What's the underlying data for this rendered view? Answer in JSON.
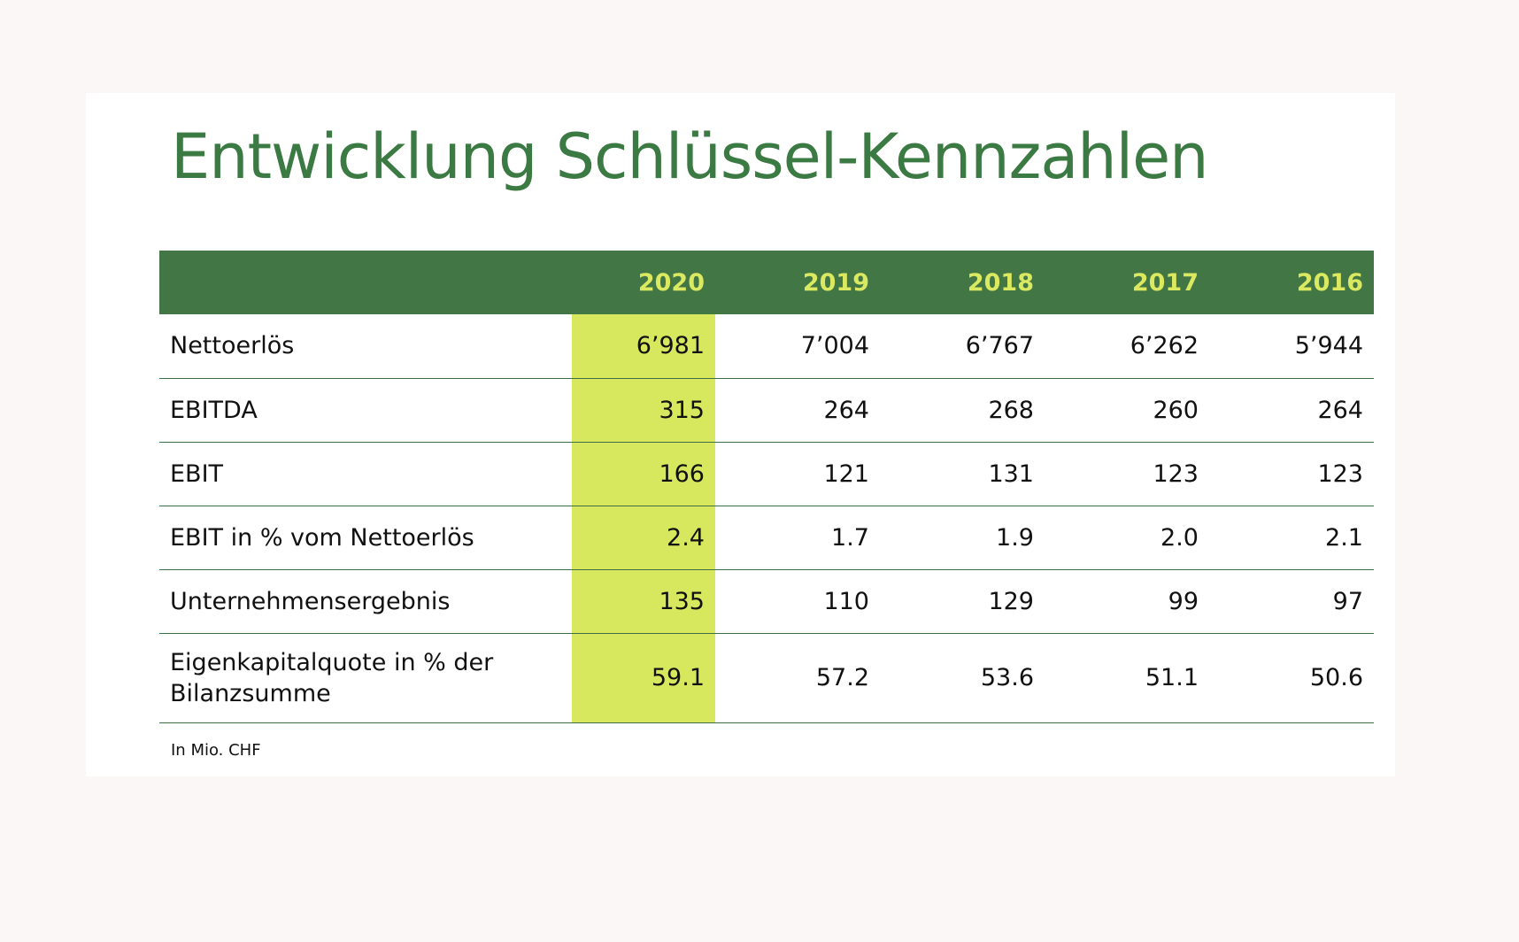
{
  "title": "Entwicklung Schlüssel-Kennzahlen",
  "table": {
    "columns": [
      "",
      "2020",
      "2019",
      "2018",
      "2017",
      "2016"
    ],
    "highlight_column": "2020",
    "rows": [
      {
        "label": "Nettoerlös",
        "values": [
          "6’981",
          "7’004",
          "6’767",
          "6’262",
          "5’944"
        ]
      },
      {
        "label": "EBITDA",
        "values": [
          "315",
          "264",
          "268",
          "260",
          "264"
        ]
      },
      {
        "label": "EBIT",
        "values": [
          "166",
          "121",
          "131",
          "123",
          "123"
        ]
      },
      {
        "label": "EBIT in % vom Nettoerlös",
        "values": [
          "2.4",
          "1.7",
          "1.9",
          "2.0",
          "2.1"
        ]
      },
      {
        "label": "Unternehmensergebnis",
        "values": [
          "135",
          "110",
          "129",
          "99",
          "97"
        ]
      },
      {
        "label": "Eigenkapitalquote in % der Bilanzsumme",
        "values": [
          "59.1",
          "57.2",
          "53.6",
          "51.1",
          "50.6"
        ]
      }
    ]
  },
  "footnote": "In Mio. CHF",
  "colors": {
    "title": "#3b7a43",
    "header_background": "#427644",
    "header_text": "#dbe960",
    "highlight": "#d7e85e",
    "row_divider": "#3d6e45"
  }
}
